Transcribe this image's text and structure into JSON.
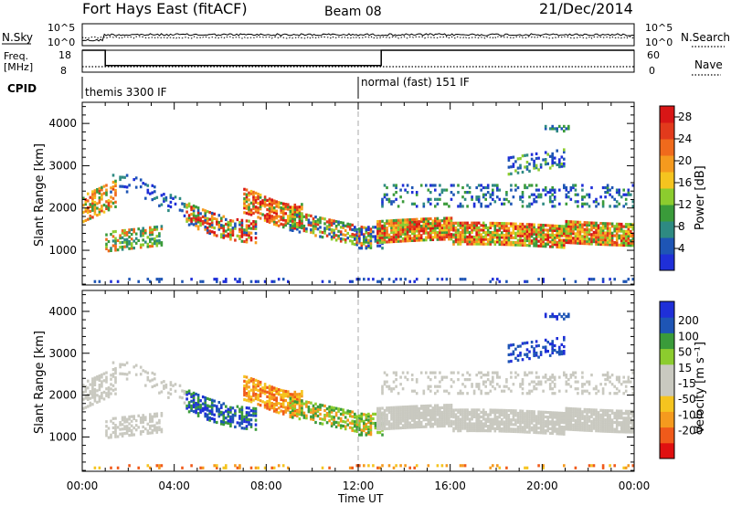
{
  "header": {
    "station": "Fort Hays East (fitACF)",
    "beam": "Beam 08",
    "date": "21/Dec/2014"
  },
  "labels": {
    "nsky": "N.Sky",
    "freq_line1": "Freq.",
    "freq_line2": "[MHz]",
    "cpid": "CPID",
    "nsearch": "N.Search",
    "nave": "Nave",
    "nsky_top": "10^5",
    "nsky_bottom": "10^0",
    "nsearch_top": "10^5",
    "nsearch_bottom": "10^0",
    "freq_top": "18",
    "freq_bottom": "8",
    "nave_top": "60",
    "nave_bottom": "0",
    "range_axis": "Slant Range [km]",
    "power_axis": "Power [dB]",
    "velocity_axis": "Velocity [m s⁻¹]",
    "time_axis": "Time UT"
  },
  "cpid_segments": [
    {
      "start_hour": 0,
      "label": "themis 3300 IF"
    },
    {
      "start_hour": 12,
      "label": "normal (fast) 151 IF"
    }
  ],
  "colors": {
    "power": [
      "#1f2fd8",
      "#1e55b5",
      "#2e8a82",
      "#3a9b3a",
      "#8ccc2e",
      "#f5c41f",
      "#f59a1e",
      "#f06a1c",
      "#e23a1c",
      "#d81616"
    ],
    "velocity": [
      "#e01010",
      "#f05a1a",
      "#f59a1e",
      "#f5c41f",
      "#c9c9c0",
      "#c9c9c0",
      "#8ccc2e",
      "#3a9b3a",
      "#1e55b5",
      "#1f2fd8"
    ]
  },
  "chart_data": [
    {
      "type": "line",
      "name": "frequency panel",
      "x": [
        0,
        1,
        1,
        13,
        13,
        24
      ],
      "series": [
        {
          "name": "Freq. [MHz]",
          "values": [
            18,
            18,
            11,
            11,
            18,
            18
          ]
        }
      ],
      "ylim": [
        8,
        18
      ],
      "xlim": [
        0,
        24
      ]
    },
    {
      "type": "heatmap",
      "name": "power",
      "ylabel": "Slant Range [km]",
      "xlabel": "Time UT",
      "xticks": [
        "00:00",
        "04:00",
        "08:00",
        "12:00",
        "16:00",
        "20:00",
        "00:00"
      ],
      "yticks": [
        1000,
        2000,
        3000,
        4000
      ],
      "ylim": [
        180,
        4500
      ],
      "colorbar": {
        "label": "Power [dB]",
        "ticks": [
          4,
          8,
          12,
          16,
          20,
          24,
          28
        ],
        "range": [
          0,
          30
        ]
      }
    },
    {
      "type": "heatmap",
      "name": "velocity",
      "ylabel": "Slant Range [km]",
      "xlabel": "Time UT",
      "xticks": [
        "00:00",
        "04:00",
        "08:00",
        "12:00",
        "16:00",
        "20:00",
        "00:00"
      ],
      "yticks": [
        1000,
        2000,
        3000,
        4000
      ],
      "ylim": [
        180,
        4500
      ],
      "colorbar": {
        "label": "Velocity [m s⁻¹]",
        "ticks": [
          200,
          100,
          50,
          15,
          -15,
          -50,
          -100,
          -200
        ]
      }
    }
  ]
}
